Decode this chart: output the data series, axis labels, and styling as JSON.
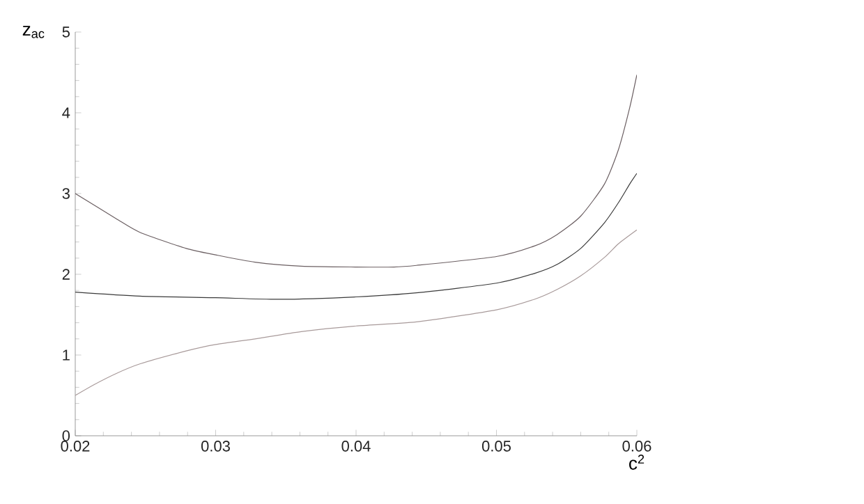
{
  "chart_data": {
    "type": "line",
    "xlabel": "c$^{2}$",
    "ylabel": "z$_{ac}$",
    "xlim": [
      0.02,
      0.06
    ],
    "ylim": [
      0,
      5
    ],
    "xticks": [
      0.02,
      0.03,
      0.04,
      0.05,
      0.06
    ],
    "yticks": [
      0,
      1,
      2,
      3,
      4,
      5
    ],
    "grid": false,
    "marker": "none",
    "line_style": "solid",
    "series": [
      {
        "color": "#6b5f62",
        "x": [
          0.02,
          0.0229,
          0.0246,
          0.0279,
          0.03,
          0.0328,
          0.0361,
          0.04,
          0.0427,
          0.0443,
          0.05,
          0.0527,
          0.0543,
          0.056,
          0.0577,
          0.0587,
          0.0595,
          0.06
        ],
        "values": [
          3.0,
          2.69,
          2.52,
          2.32,
          2.24,
          2.15,
          2.1,
          2.09,
          2.09,
          2.11,
          2.22,
          2.35,
          2.49,
          2.72,
          3.12,
          3.55,
          4.07,
          4.47
        ]
      },
      {
        "color": "#3a3a3a",
        "x": [
          0.02,
          0.0246,
          0.03,
          0.0345,
          0.04,
          0.0443,
          0.05,
          0.0527,
          0.0543,
          0.056,
          0.0577,
          0.0587,
          0.0595,
          0.06
        ],
        "values": [
          1.78,
          1.73,
          1.71,
          1.69,
          1.72,
          1.77,
          1.89,
          2.01,
          2.12,
          2.32,
          2.64,
          2.89,
          3.12,
          3.25
        ]
      },
      {
        "color": "#a89a9a",
        "x": [
          0.02,
          0.0213,
          0.0229,
          0.0246,
          0.0279,
          0.03,
          0.0328,
          0.0361,
          0.04,
          0.0443,
          0.05,
          0.0527,
          0.0543,
          0.056,
          0.0577,
          0.0587,
          0.06
        ],
        "values": [
          0.5,
          0.63,
          0.77,
          0.89,
          1.05,
          1.13,
          1.2,
          1.29,
          1.36,
          1.41,
          1.56,
          1.69,
          1.81,
          1.98,
          2.21,
          2.38,
          2.55
        ]
      }
    ]
  }
}
